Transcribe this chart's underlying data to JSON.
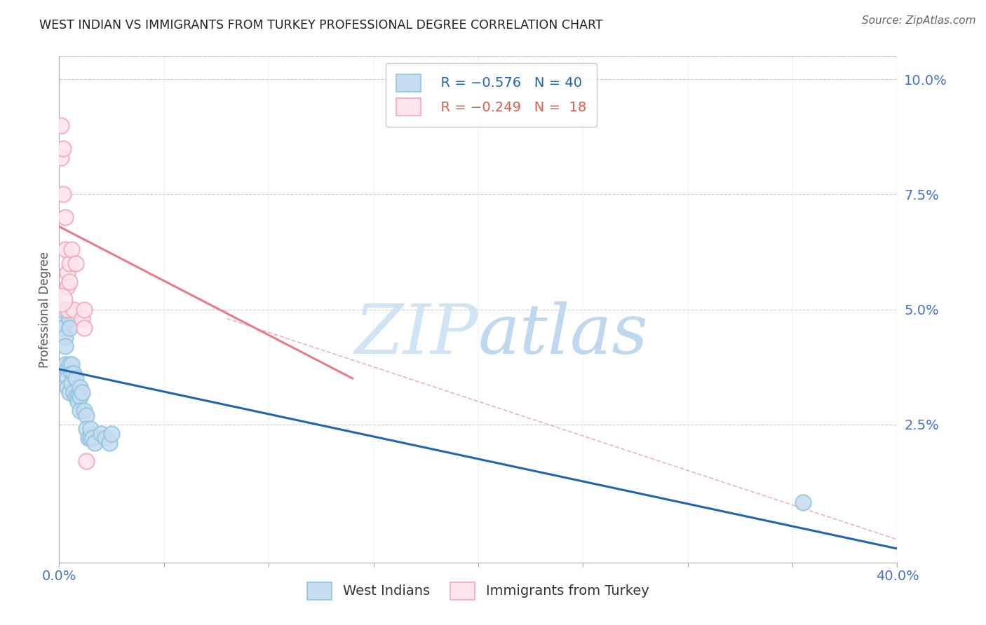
{
  "title": "WEST INDIAN VS IMMIGRANTS FROM TURKEY PROFESSIONAL DEGREE CORRELATION CHART",
  "source": "Source: ZipAtlas.com",
  "ylabel": "Professional Degree",
  "ytick_labels": [
    "2.5%",
    "5.0%",
    "7.5%",
    "10.0%"
  ],
  "ytick_values": [
    0.025,
    0.05,
    0.075,
    0.1
  ],
  "xlim": [
    0.0,
    0.4
  ],
  "ylim": [
    -0.005,
    0.105
  ],
  "west_indians_x": [
    0.001,
    0.001,
    0.002,
    0.002,
    0.003,
    0.003,
    0.003,
    0.004,
    0.004,
    0.004,
    0.005,
    0.005,
    0.005,
    0.005,
    0.006,
    0.006,
    0.006,
    0.007,
    0.007,
    0.008,
    0.008,
    0.009,
    0.009,
    0.01,
    0.01,
    0.01,
    0.011,
    0.012,
    0.013,
    0.013,
    0.014,
    0.015,
    0.015,
    0.016,
    0.017,
    0.02,
    0.022,
    0.024,
    0.025,
    0.355
  ],
  "west_indians_y": [
    0.048,
    0.046,
    0.05,
    0.046,
    0.044,
    0.042,
    0.038,
    0.037,
    0.035,
    0.033,
    0.048,
    0.046,
    0.038,
    0.032,
    0.038,
    0.036,
    0.034,
    0.036,
    0.032,
    0.035,
    0.031,
    0.031,
    0.03,
    0.033,
    0.031,
    0.028,
    0.032,
    0.028,
    0.027,
    0.024,
    0.022,
    0.022,
    0.024,
    0.022,
    0.021,
    0.023,
    0.022,
    0.021,
    0.023,
    0.008
  ],
  "turkey_x": [
    0.001,
    0.001,
    0.002,
    0.002,
    0.003,
    0.003,
    0.004,
    0.004,
    0.004,
    0.005,
    0.005,
    0.006,
    0.007,
    0.008,
    0.011,
    0.012,
    0.012,
    0.013
  ],
  "turkey_y": [
    0.09,
    0.083,
    0.085,
    0.075,
    0.07,
    0.063,
    0.058,
    0.055,
    0.05,
    0.06,
    0.056,
    0.063,
    0.05,
    0.06,
    0.048,
    0.046,
    0.05,
    0.017
  ],
  "blue_line_x0": 0.0,
  "blue_line_x1": 0.4,
  "blue_line_y0": 0.037,
  "blue_line_y1": -0.002,
  "pink_line_x0": 0.0,
  "pink_line_x1": 0.14,
  "pink_line_y0": 0.068,
  "pink_line_y1": 0.035,
  "dashed_line_x0": 0.08,
  "dashed_line_x1": 0.4,
  "dashed_line_y0": 0.048,
  "dashed_line_y1": 0.0,
  "legend_r1": "R = −0.576",
  "legend_n1": "N = 40",
  "legend_r2": "R = −0.249",
  "legend_n2": "N =  18",
  "blue_color": "#92c5de",
  "pink_color": "#f4a7b9",
  "blue_line_color": "#2166ac",
  "pink_line_color": "#d6604d",
  "dashed_line_color": "#cccccc",
  "title_color": "#222222",
  "source_color": "#666666",
  "tick_label_color": "#4472c4",
  "grid_color": "#cccccc",
  "watermark_zip_color": "#c5dff5",
  "watermark_atlas_color": "#b0c8e8",
  "background_color": "#ffffff"
}
